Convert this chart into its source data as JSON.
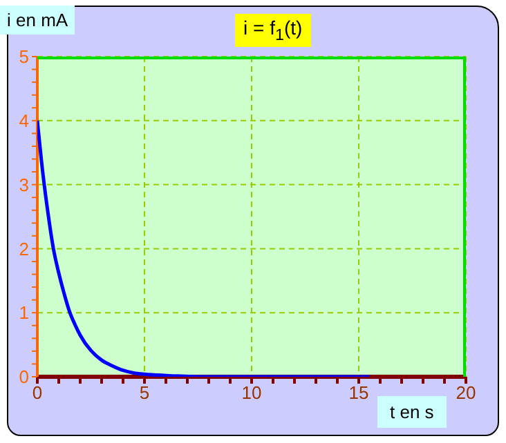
{
  "chart_data": {
    "type": "line",
    "title": "i = f$_{1}$(t)",
    "xlabel": "t en s",
    "ylabel": "i en mA",
    "x": [
      0,
      0.25,
      0.5,
      0.75,
      1,
      1.25,
      1.5,
      1.75,
      2,
      2.5,
      3,
      3.5,
      4,
      4.5,
      5,
      6,
      8,
      10,
      12,
      15.5
    ],
    "series": [
      {
        "color": "#0000ff",
        "values": [
          4,
          3.2,
          2.55,
          2.0,
          1.62,
          1.3,
          1.02,
          0.82,
          0.65,
          0.41,
          0.26,
          0.17,
          0.1,
          0.06,
          0.04,
          0.02,
          0,
          0,
          0,
          0
        ]
      }
    ],
    "xlim": [
      0,
      20
    ],
    "ylim": [
      0,
      5
    ],
    "xticks": [
      0,
      {
        "value": 1,
        "label": null
      },
      {
        "value": 2,
        "label": null
      },
      {
        "value": 3,
        "label": null
      },
      {
        "value": 4,
        "label": null
      },
      5,
      {
        "value": 6,
        "label": null
      },
      {
        "value": 7,
        "label": null
      },
      {
        "value": 8,
        "label": null
      },
      {
        "value": 9,
        "label": null
      },
      10,
      {
        "value": 11,
        "label": null
      },
      {
        "value": 12,
        "label": null
      },
      {
        "value": 13,
        "label": null
      },
      {
        "value": 14,
        "label": null
      },
      15,
      {
        "value": 16,
        "label": null
      },
      {
        "value": 17,
        "label": null
      },
      {
        "value": 18,
        "label": null
      },
      {
        "value": 19,
        "label": null
      },
      20
    ],
    "yticks": [
      0,
      {
        "value": 0.2,
        "label": null
      },
      {
        "value": 0.4,
        "label": null
      },
      {
        "value": 0.6,
        "label": null
      },
      {
        "value": 0.8,
        "label": null
      },
      1,
      {
        "value": 1.2,
        "label": null
      },
      {
        "value": 1.4,
        "label": null
      },
      {
        "value": 1.6,
        "label": null
      },
      {
        "value": 1.8,
        "label": null
      },
      2,
      {
        "value": 2.2,
        "label": null
      },
      {
        "value": 2.4,
        "label": null
      },
      {
        "value": 2.6,
        "label": null
      },
      {
        "value": 2.8,
        "label": null
      },
      3,
      {
        "value": 3.2,
        "label": null
      },
      {
        "value": 3.4,
        "label": null
      },
      {
        "value": 3.6,
        "label": null
      },
      {
        "value": 3.8,
        "label": null
      },
      4,
      {
        "value": 4.2,
        "label": null
      },
      {
        "value": 4.4,
        "label": null
      },
      {
        "value": 4.6,
        "label": null
      },
      {
        "value": 4.8,
        "label": null
      },
      5
    ],
    "grid": true,
    "marker": "none",
    "line_style": "solid"
  }
}
